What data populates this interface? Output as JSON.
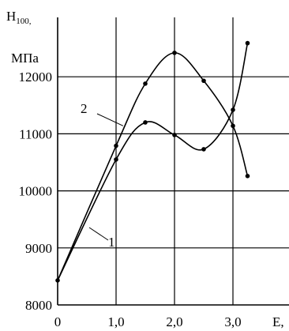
{
  "chart_data": {
    "type": "line",
    "ylabel": "H",
    "ylabel_subscript": "100,",
    "yunit": "МПа",
    "xlabel": "E,",
    "xlim": [
      0,
      3.2
    ],
    "ylim": [
      8000,
      13000
    ],
    "grid": true,
    "x_ticks": [
      "0",
      "1,0",
      "2,0",
      "3,0"
    ],
    "x_tick_values": [
      0,
      1.0,
      2.0,
      3.0
    ],
    "y_ticks": [
      "8000",
      "9000",
      "10000",
      "11000",
      "12000"
    ],
    "y_tick_values": [
      8000,
      9000,
      10000,
      11000,
      12000
    ],
    "series": [
      {
        "name": "1",
        "x": [
          0,
          1.0,
          1.5,
          2.0,
          2.5,
          3.0,
          3.25
        ],
        "y": [
          8430,
          10550,
          11200,
          10980,
          10730,
          11420,
          12590
        ]
      },
      {
        "name": "2",
        "x": [
          0,
          1.0,
          1.5,
          2.0,
          2.5,
          3.0,
          3.25
        ],
        "y": [
          8430,
          10790,
          11880,
          12420,
          11930,
          11140,
          10260
        ]
      }
    ],
    "colors": {
      "axis": "#000000",
      "line": "#000000"
    }
  }
}
